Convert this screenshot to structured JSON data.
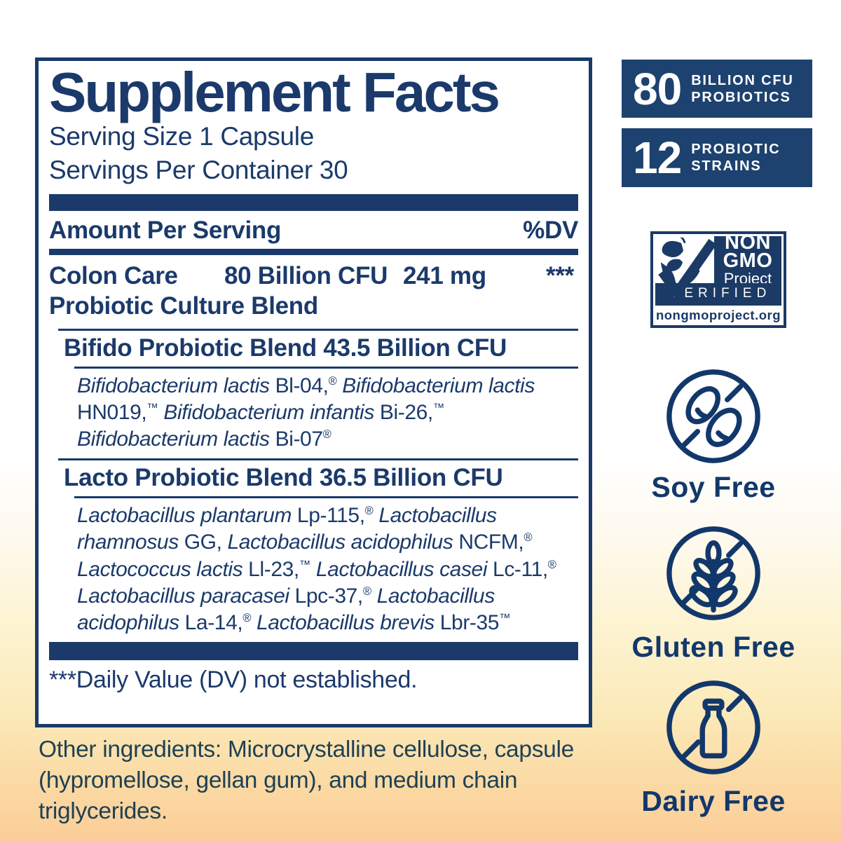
{
  "colors": {
    "label_navy": "#1b3a6b",
    "badge_navy": "#1d4270",
    "icon_navy": "#12386b",
    "nongmo_navy": "#1b3a66",
    "other_ingredients_text": "#1e4154",
    "background_bottom": "#fbcd98"
  },
  "panel": {
    "title": "Supplement Facts",
    "serving_size": "Serving Size 1 Capsule",
    "servings_per_container": "Servings Per Container 30",
    "amount_header": "Amount Per Serving",
    "dv_header": "%DV",
    "main_row": {
      "name": "Colon Care",
      "name2": "Probiotic Culture Blend",
      "amount": "80 Billion CFU",
      "weight": "241 mg",
      "dv": "***"
    },
    "bifido": {
      "header": "Bifido Probiotic Blend 43.5 Billion CFU",
      "ingredients": [
        {
          "t": "Bifidobacterium lactis",
          "i": true
        },
        {
          "t": " Bl-04,"
        },
        {
          "t": "®",
          "sup": true
        },
        {
          "t": " "
        },
        {
          "t": "Bifidobacterium lactis",
          "i": true
        },
        {
          "t": " HN019,"
        },
        {
          "t": "™",
          "sup": true
        },
        {
          "t": " "
        },
        {
          "t": "Bifidobacterium infantis",
          "i": true
        },
        {
          "t": " Bi-26,"
        },
        {
          "t": "™",
          "sup": true
        },
        {
          "t": " "
        },
        {
          "t": "Bifidobacterium lactis",
          "i": true
        },
        {
          "t": " Bi-07"
        },
        {
          "t": "®",
          "sup": true
        }
      ]
    },
    "lacto": {
      "header": "Lacto Probiotic Blend 36.5 Billion CFU",
      "ingredients": [
        {
          "t": "Lactobacillus plantarum",
          "i": true
        },
        {
          "t": " Lp-115,"
        },
        {
          "t": "®",
          "sup": true
        },
        {
          "t": " "
        },
        {
          "t": "Lactobacillus rhamnosus",
          "i": true
        },
        {
          "t": " GG, "
        },
        {
          "t": "Lactobacillus acidophilus",
          "i": true
        },
        {
          "t": " NCFM,"
        },
        {
          "t": "®",
          "sup": true
        },
        {
          "t": " "
        },
        {
          "t": "Lactococcus lactis",
          "i": true
        },
        {
          "t": " Ll-23,"
        },
        {
          "t": "™",
          "sup": true
        },
        {
          "t": " "
        },
        {
          "t": "Lactobacillus casei",
          "i": true
        },
        {
          "t": " Lc-11,"
        },
        {
          "t": "®",
          "sup": true
        },
        {
          "t": " "
        },
        {
          "t": "Lactobacillus paracasei",
          "i": true
        },
        {
          "t": " Lpc-37,"
        },
        {
          "t": "®",
          "sup": true
        },
        {
          "t": " "
        },
        {
          "t": "Lactobacillus acidophilus",
          "i": true
        },
        {
          "t": " La-14,"
        },
        {
          "t": "®",
          "sup": true
        },
        {
          "t": " "
        },
        {
          "t": "Lactobacillus brevis",
          "i": true
        },
        {
          "t": " Lbr-35"
        },
        {
          "t": "™",
          "sup": true
        }
      ]
    },
    "footnote": "***Daily Value (DV) not established."
  },
  "other_ingredients": "Other ingredients: Microcrystalline cellulose, capsule (hypromellose, gellan gum), and medium chain triglycerides.",
  "badges": [
    {
      "value": "80",
      "line1": "BILLION CFU",
      "line2": "PROBIOTICS"
    },
    {
      "value": "12",
      "line1": "PROBIOTIC",
      "line2": "STRAINS"
    }
  ],
  "nongmo": {
    "word1": "NON",
    "word2": "GMO",
    "word3": "Project",
    "verified": "VERIFIED",
    "website": "nongmoproject.org"
  },
  "free_claims": [
    {
      "label": "Soy Free",
      "icon": "soy-beans-icon"
    },
    {
      "label": "Gluten Free",
      "icon": "wheat-icon"
    },
    {
      "label": "Dairy Free",
      "icon": "milk-bottle-icon"
    }
  ]
}
